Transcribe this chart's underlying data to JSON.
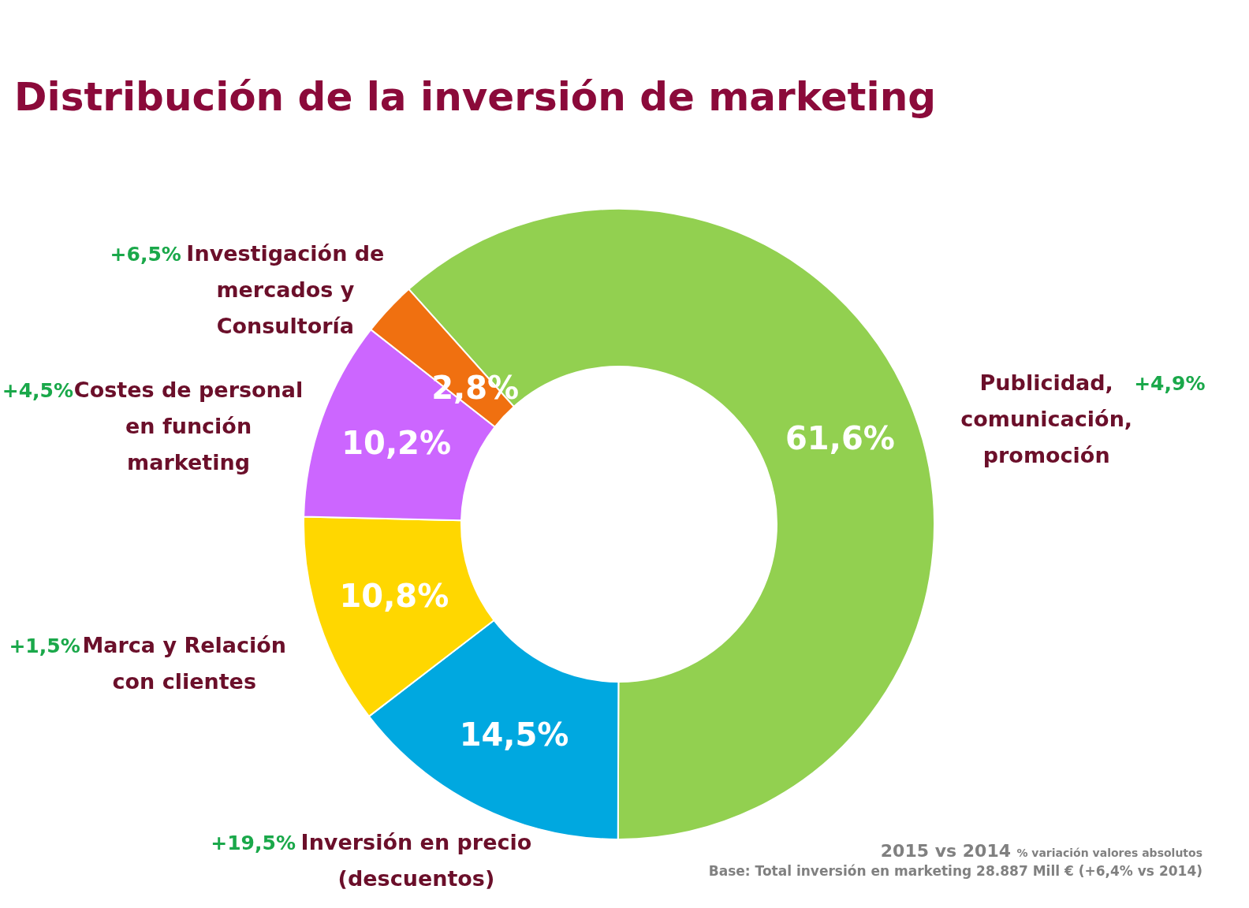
{
  "chart_data": {
    "type": "donut",
    "title": "Distribución de la inversión de marketing",
    "categories": [
      "Publicidad, comunicación, promoción",
      "Inversión en precio (descuentos)",
      "Marca y Relación con clientes",
      "Costes de personal en función marketing",
      "Investigación de mercados y Consultoría"
    ],
    "values": [
      61.6,
      14.5,
      10.8,
      10.2,
      2.8
    ],
    "value_labels": [
      "61,6%",
      "14,5%",
      "10,8%",
      "10,2%",
      "2,8%"
    ],
    "colors": [
      "#92d050",
      "#00a8e0",
      "#ffd700",
      "#cc66ff",
      "#f07010"
    ],
    "annotations": [
      "+4,9%",
      "+19,5%",
      "+1,5%",
      "+4,5%",
      "+6,5%",
      "2015 vs 2014",
      "% variación valores absolutos",
      "Base: Total inversión en marketing 28.887 Mill € (+6,4% vs 2014)"
    ]
  }
}
